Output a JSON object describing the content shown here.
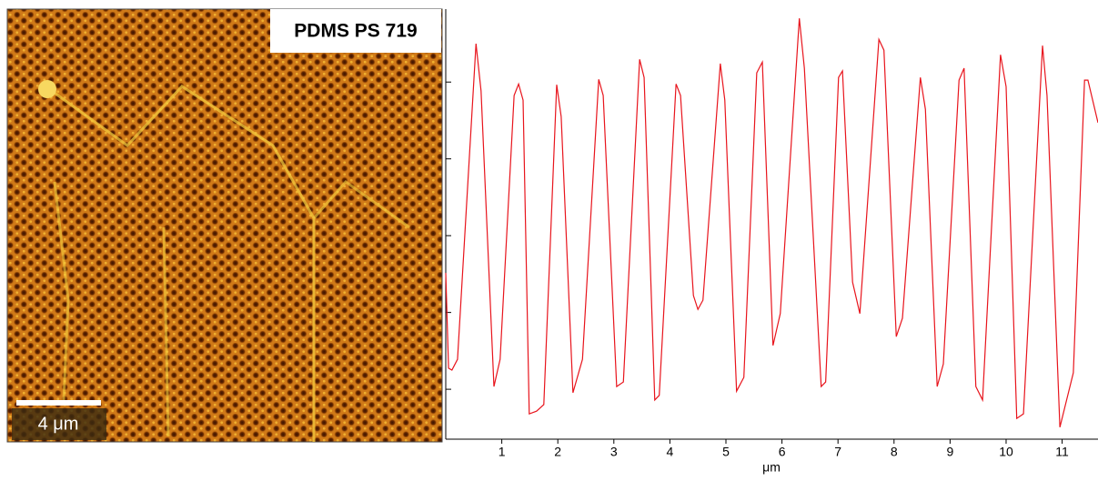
{
  "image": {
    "label": "PDMS PS 719",
    "scale_bar": "4 μm"
  },
  "chart_data": {
    "type": "line",
    "x_label": "μm",
    "x": [
      0,
      0.05,
      0.11,
      0.21,
      0.54,
      0.63,
      0.86,
      0.97,
      1.22,
      1.3,
      1.38,
      1.49,
      1.62,
      1.75,
      1.98,
      2.06,
      2.27,
      2.44,
      2.73,
      2.81,
      3.05,
      3.17,
      3.46,
      3.54,
      3.73,
      3.81,
      4.11,
      4.19,
      4.42,
      4.5,
      4.59,
      4.9,
      4.98,
      5.19,
      5.32,
      5.55,
      5.65,
      5.84,
      5.97,
      6.31,
      6.4,
      6.7,
      6.78,
      7.01,
      7.08,
      7.26,
      7.39,
      7.73,
      7.82,
      8.04,
      8.15,
      8.47,
      8.56,
      8.77,
      8.88,
      9.16,
      9.25,
      9.46,
      9.58,
      9.9,
      10.0,
      10.19,
      10.31,
      10.65,
      10.73,
      10.96,
      11.2,
      11.4,
      11.46,
      11.64
    ],
    "series": [
      {
        "color": "#e8141c",
        "values": [
          40.3,
          15.5,
          15.0,
          17.8,
          100.0,
          87.7,
          10.7,
          17.8,
          86.5,
          89.5,
          85.3,
          3.6,
          4.3,
          6.0,
          89.3,
          81.0,
          9.1,
          17.8,
          90.7,
          86.5,
          10.7,
          11.9,
          95.9,
          91.2,
          7.2,
          8.4,
          89.5,
          86.5,
          34.4,
          30.8,
          33.2,
          94.8,
          85.3,
          9.5,
          13.1,
          92.4,
          95.2,
          21.4,
          29.7,
          106.6,
          93.6,
          10.7,
          11.9,
          91.2,
          92.9,
          37.9,
          29.7,
          101.1,
          98.3,
          23.7,
          28.5,
          91.2,
          82.9,
          10.7,
          16.6,
          90.5,
          93.6,
          10.7,
          7.2,
          97.1,
          88.8,
          2.4,
          3.6,
          99.5,
          86.5,
          0.1,
          14.3,
          90.5,
          90.5,
          79.4
        ]
      }
    ],
    "xlim": [
      0,
      11.64
    ],
    "xticks": [
      1,
      2,
      3,
      4,
      5,
      6,
      7,
      8,
      9,
      10,
      11
    ],
    "ylim": [
      -3,
      109
    ],
    "yticks": [
      10,
      30,
      50,
      70,
      90
    ]
  }
}
